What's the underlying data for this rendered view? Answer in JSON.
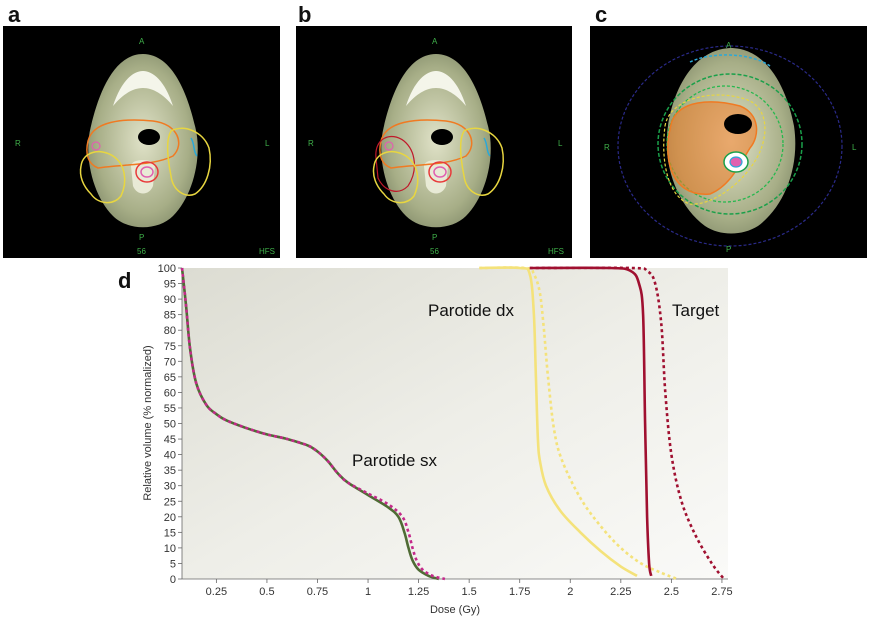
{
  "panels": {
    "a": {
      "letter": "a"
    },
    "b": {
      "letter": "b"
    },
    "c": {
      "letter": "c"
    },
    "d": {
      "letter": "d"
    }
  },
  "ct_labels": {
    "anterior": "A",
    "posterior": "P",
    "right": "R",
    "left": "L",
    "slice": "56",
    "orientation": "HFS"
  },
  "colors": {
    "parotide_sx": "#4f6b34",
    "parotide_sx_alt": "#c4298a",
    "parotide_dx": "#f4e27a",
    "target": "#a01030",
    "contour_orange": "#f07a22",
    "contour_yellow": "#e8d640",
    "contour_blue": "#2aa8d8",
    "contour_red": "#e83a3a",
    "contour_pink": "#e060b0",
    "isodose_green": "#1aa04a",
    "isodose_navy": "#2a2a8a"
  },
  "chart_data": {
    "type": "line",
    "xlabel": "Dose (Gy)",
    "ylabel": "Relative volume (% normalized)",
    "xlim": [
      0.08,
      2.78
    ],
    "ylim": [
      0,
      100
    ],
    "x_ticks": [
      "0.25",
      "0.5",
      "0.75",
      "1",
      "1.25",
      "1.5",
      "1.75",
      "2",
      "2.25",
      "2.5",
      "2.75"
    ],
    "y_ticks": [
      "0",
      "5",
      "10",
      "15",
      "20",
      "25",
      "30",
      "35",
      "40",
      "45",
      "50",
      "55",
      "60",
      "65",
      "70",
      "75",
      "80",
      "85",
      "90",
      "95",
      "100"
    ],
    "annotations": {
      "parotide_sx": "Parotide sx",
      "parotide_dx": "Parotide dx",
      "target": "Target"
    },
    "series": [
      {
        "name": "Parotide sx",
        "style": "solid",
        "color": "#4f6b34",
        "x": [
          0.08,
          0.1,
          0.12,
          0.15,
          0.2,
          0.25,
          0.3,
          0.4,
          0.5,
          0.6,
          0.7,
          0.75,
          0.8,
          0.85,
          0.9,
          1.0,
          1.1,
          1.15,
          1.18,
          1.2,
          1.22,
          1.25,
          1.3,
          1.35
        ],
        "y": [
          100,
          88,
          74,
          63,
          56,
          53,
          51,
          48.5,
          46.5,
          45,
          43,
          41,
          38,
          34,
          31,
          27,
          23,
          20,
          15,
          10,
          6,
          3,
          1,
          0
        ]
      },
      {
        "name": "Parotide sx",
        "style": "dotted",
        "color": "#c4298a",
        "x": [
          0.08,
          0.1,
          0.12,
          0.15,
          0.2,
          0.25,
          0.3,
          0.4,
          0.5,
          0.6,
          0.7,
          0.75,
          0.8,
          0.85,
          0.9,
          1.0,
          1.1,
          1.17,
          1.2,
          1.22,
          1.24,
          1.27,
          1.32,
          1.38
        ],
        "y": [
          100,
          88,
          74,
          63,
          56,
          53,
          51,
          48.5,
          46.5,
          45,
          43,
          41,
          38,
          34,
          31,
          27.5,
          24,
          20,
          15,
          10,
          6,
          3,
          1,
          0
        ]
      },
      {
        "name": "Parotide dx",
        "style": "solid",
        "color": "#f4e27a",
        "x": [
          1.55,
          1.75,
          1.8,
          1.82,
          1.83,
          1.84,
          1.85,
          1.88,
          1.95,
          2.05,
          2.15,
          2.25,
          2.33
        ],
        "y": [
          100,
          100,
          98,
          85,
          65,
          45,
          38,
          30,
          22,
          15,
          9,
          4,
          1
        ]
      },
      {
        "name": "Parotide dx",
        "style": "dotted",
        "color": "#f4e27a",
        "x": [
          1.55,
          1.78,
          1.82,
          1.85,
          1.87,
          1.89,
          1.92,
          1.96,
          2.05,
          2.15,
          2.25,
          2.35,
          2.45,
          2.53
        ],
        "y": [
          100,
          100,
          98,
          92,
          80,
          65,
          48,
          38,
          26,
          17,
          10,
          5,
          2,
          0
        ]
      },
      {
        "name": "Target",
        "style": "solid",
        "color": "#a01030",
        "x": [
          1.8,
          2.2,
          2.3,
          2.34,
          2.36,
          2.37,
          2.38,
          2.39,
          2.4
        ],
        "y": [
          100,
          100,
          99,
          95,
          85,
          50,
          20,
          5,
          1
        ]
      },
      {
        "name": "Target",
        "style": "dotted",
        "color": "#a01030",
        "x": [
          1.8,
          2.3,
          2.38,
          2.42,
          2.45,
          2.47,
          2.5,
          2.55,
          2.62,
          2.7,
          2.76
        ],
        "y": [
          100,
          100,
          99,
          95,
          82,
          60,
          40,
          25,
          14,
          5,
          0
        ]
      }
    ]
  }
}
